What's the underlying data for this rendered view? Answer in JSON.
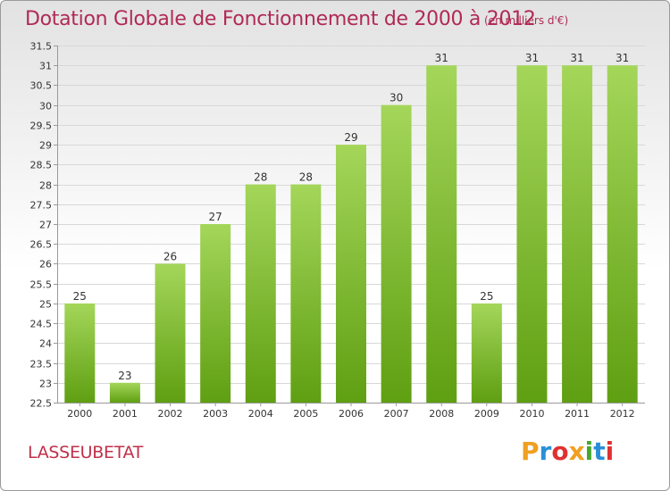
{
  "title": "Dotation Globale de Fonctionnement de 2000 à 2012",
  "subtitle": "(en milliers d'€)",
  "commune": "LASSEUBETAT",
  "logo": {
    "text": "Proxiti",
    "letters": [
      {
        "char": "P",
        "color": "#f0a020"
      },
      {
        "char": "r",
        "color": "#2a8fd8"
      },
      {
        "char": "o",
        "color": "#e03030"
      },
      {
        "char": "x",
        "color": "#f0a020"
      },
      {
        "char": "i",
        "color": "#46a832"
      },
      {
        "char": "t",
        "color": "#2a8fd8"
      },
      {
        "char": "i",
        "color": "#e03030"
      }
    ]
  },
  "colors": {
    "title": "#b02a55",
    "bar_top": "#a4d65a",
    "bar_bottom": "#5f9f12",
    "grid": "#d8d8d8",
    "axis": "#999999",
    "text": "#333333"
  },
  "chart_data": {
    "type": "bar",
    "categories": [
      "2000",
      "2001",
      "2002",
      "2003",
      "2004",
      "2005",
      "2006",
      "2007",
      "2008",
      "2009",
      "2010",
      "2011",
      "2012"
    ],
    "values": [
      25,
      23,
      26,
      27,
      28,
      28,
      29,
      30,
      31,
      25,
      31,
      31,
      31
    ],
    "ylim": [
      22.5,
      31.5
    ],
    "yticks": [
      22.5,
      23,
      23.5,
      24,
      24.5,
      25,
      25.5,
      26,
      26.5,
      27,
      27.5,
      28,
      28.5,
      29,
      29.5,
      30,
      30.5,
      31,
      31.5
    ],
    "grid": true,
    "data_labels": true
  }
}
